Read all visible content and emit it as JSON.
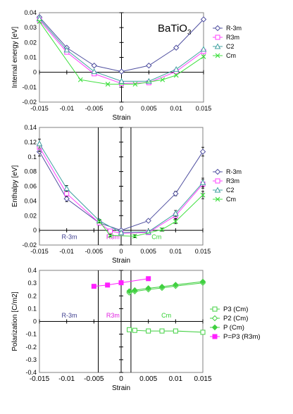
{
  "colors": {
    "R-3m": "#5050a0",
    "R3m": "#ff40ff",
    "C2": "#40a0a0",
    "Cm": "#40e040",
    "P3 (Cm)": "#40d040",
    "P2 (Cm)": "#40d040",
    "P (Cm)": "#40d040",
    "P=P3 (R3m)": "#ff20ff",
    "phase_R-3m": "#404090",
    "phase_R3m": "#e020e0",
    "phase_Cm": "#30d030"
  },
  "chart_data": [
    {
      "type": "line",
      "title": "BaTiO3",
      "title_main": "BaTiO",
      "title_sub": "3",
      "xlabel": "Strain",
      "ylabel": "Internal energy [eV]",
      "xlim": [
        -0.015,
        0.015
      ],
      "ylim": [
        -0.02,
        0.04
      ],
      "xticks": [
        -0.015,
        -0.01,
        -0.005,
        0,
        0.005,
        0.01,
        0.015
      ],
      "yticks": [
        -0.02,
        -0.01,
        0,
        0.01,
        0.02,
        0.03,
        0.04
      ],
      "xtick_labels": [
        "-0.015",
        "-0.01",
        "-0.005",
        "0",
        "0.005",
        "0.01",
        "0.015"
      ],
      "ytick_labels": [
        "-0.02",
        "-0.01",
        "0",
        "0.01",
        "0.02",
        "0.03",
        "0.04"
      ],
      "grid": false,
      "legend": "right",
      "series": [
        {
          "name": "R-3m",
          "marker": "diamond",
          "x": [
            -0.015,
            -0.01,
            -0.005,
            0,
            0.005,
            0.01,
            0.015
          ],
          "y": [
            0.037,
            0.0165,
            0.0045,
            0.0005,
            0.0045,
            0.0165,
            0.0355
          ]
        },
        {
          "name": "R3m",
          "marker": "square",
          "x": [
            -0.015,
            -0.01,
            -0.005,
            0,
            0.005,
            0.01,
            0.015
          ],
          "y": [
            0.035,
            0.0135,
            -0.001,
            -0.0075,
            -0.007,
            0.0005,
            0.014
          ]
        },
        {
          "name": "C2",
          "marker": "triangle",
          "x": [
            -0.015,
            -0.01,
            -0.005,
            0,
            0.005,
            0.01,
            0.015
          ],
          "y": [
            0.036,
            0.015,
            0.0005,
            -0.006,
            -0.006,
            0.002,
            0.0155
          ]
        },
        {
          "name": "Cm",
          "marker": "x",
          "x": [
            -0.015,
            -0.0075,
            -0.0025,
            0.0025,
            0.0075,
            0.01,
            0.015
          ],
          "y": [
            0.034,
            -0.005,
            -0.008,
            -0.008,
            -0.005,
            -0.002,
            0.0105
          ]
        }
      ]
    },
    {
      "type": "line",
      "xlabel": "Strain",
      "ylabel": "Enthalpy [eV]",
      "xlim": [
        -0.015,
        0.015
      ],
      "ylim": [
        -0.02,
        0.14
      ],
      "xticks": [
        -0.015,
        -0.01,
        -0.005,
        0,
        0.005,
        0.01,
        0.015
      ],
      "yticks": [
        -0.02,
        0,
        0.02,
        0.04,
        0.06,
        0.08,
        0.1,
        0.12,
        0.14
      ],
      "xtick_labels": [
        "-0.015",
        "-0.01",
        "-0.005",
        "0",
        "0.005",
        "0.01",
        "0.015"
      ],
      "ytick_labels": [
        "-0.02",
        "0",
        "0.02",
        "0.04",
        "0.06",
        "0.08",
        "0.1",
        "0.12",
        "0.14"
      ],
      "grid": false,
      "legend": "right",
      "vlines": [
        -0.0042,
        0.0018
      ],
      "phase_labels": [
        {
          "text": "R-3m",
          "x": -0.0095,
          "y": -0.012,
          "color_key": "phase_R-3m"
        },
        {
          "text": "R3m",
          "x": -0.0015,
          "y": -0.012,
          "color_key": "phase_R3m"
        },
        {
          "text": "Cm",
          "x": 0.0065,
          "y": -0.012,
          "color_key": "phase_Cm"
        }
      ],
      "series": [
        {
          "name": "R-3m",
          "marker": "diamond",
          "x": [
            -0.015,
            -0.01,
            -0.004,
            0,
            0.005,
            0.01,
            0.015
          ],
          "y": [
            0.107,
            0.043,
            0.01,
            0.0,
            0.013,
            0.05,
            0.107
          ],
          "err": [
            0.006,
            0.004,
            0.002,
            0.002,
            0.002,
            0.003,
            0.006
          ]
        },
        {
          "name": "R3m",
          "marker": "square",
          "x": [
            -0.015,
            -0.01,
            -0.004,
            -0.002,
            0,
            0.005,
            0.01,
            0.015
          ],
          "y": [
            0.113,
            0.05,
            0.01,
            -0.001,
            -0.004,
            -0.003,
            0.02,
            0.063
          ],
          "err": [
            0.006,
            0.004,
            0.002,
            0.002,
            0.002,
            0.002,
            0.004,
            0.006
          ]
        },
        {
          "name": "C2",
          "marker": "triangle",
          "x": [
            -0.015,
            -0.01,
            -0.004,
            0,
            0.005,
            0.01,
            0.015
          ],
          "y": [
            0.118,
            0.057,
            0.013,
            -0.003,
            -0.002,
            0.023,
            0.065
          ],
          "err": [
            0.006,
            0.004,
            0.002,
            0.002,
            0.002,
            0.004,
            0.006
          ]
        },
        {
          "name": "Cm",
          "marker": "x",
          "x": [
            -0.004,
            -0.002,
            0.0025,
            0.0075,
            0.01,
            0.015
          ],
          "y": [
            0.012,
            -0.007,
            -0.008,
            0.001,
            0.012,
            0.048
          ],
          "err": [
            0.002,
            0.002,
            0.002,
            0.002,
            0.003,
            0.005
          ]
        }
      ]
    },
    {
      "type": "line",
      "xlabel": "Strain",
      "ylabel": "Polarization [C/m2]",
      "xlim": [
        -0.015,
        0.015
      ],
      "ylim": [
        -0.4,
        0.4
      ],
      "xticks": [
        -0.015,
        -0.01,
        -0.005,
        0,
        0.005,
        0.01,
        0.015
      ],
      "yticks": [
        -0.4,
        -0.3,
        -0.2,
        -0.1,
        0,
        0.1,
        0.2,
        0.3,
        0.4
      ],
      "xtick_labels": [
        "-0.015",
        "-0.01",
        "-0.005",
        "0",
        "0.005",
        "0.01",
        "0.015"
      ],
      "ytick_labels": [
        "-0.4",
        "-0.3",
        "-0.2",
        "-0.1",
        "0",
        "0.1",
        "0.2",
        "0.3",
        "0.4"
      ],
      "grid": false,
      "legend": "right",
      "vlines": [
        -0.0042,
        0.0018
      ],
      "phase_labels": [
        {
          "text": "R-3m",
          "x": -0.0095,
          "y": 0.03,
          "color_key": "phase_R-3m"
        },
        {
          "text": "R3m",
          "x": -0.0015,
          "y": 0.03,
          "color_key": "phase_R3m"
        },
        {
          "text": "Cm",
          "x": 0.0083,
          "y": 0.03,
          "color_key": "phase_Cm"
        }
      ],
      "series": [
        {
          "name": "P3 (Cm)",
          "marker": "square-open",
          "x": [
            0.0015,
            0.0025,
            0.005,
            0.0075,
            0.01,
            0.015
          ],
          "y": [
            -0.065,
            -0.07,
            -0.075,
            -0.075,
            -0.075,
            -0.085
          ]
        },
        {
          "name": "P2 (Cm)",
          "marker": "diamond-open",
          "x": [
            0.0015,
            0.0025,
            0.005,
            0.0075,
            0.01,
            0.015
          ],
          "y": [
            0.225,
            0.235,
            0.25,
            0.262,
            0.277,
            0.302
          ]
        },
        {
          "name": "P (Cm)",
          "marker": "diamond-filled",
          "x": [
            0.0015,
            0.0025,
            0.005,
            0.0075,
            0.01,
            0.015
          ],
          "y": [
            0.237,
            0.245,
            0.26,
            0.272,
            0.287,
            0.312
          ]
        },
        {
          "name": "P=P3 (R3m)",
          "marker": "square-filled",
          "x": [
            -0.005,
            -0.0025,
            0,
            0.005
          ],
          "y": [
            0.275,
            0.285,
            0.303,
            0.335
          ]
        }
      ]
    }
  ]
}
